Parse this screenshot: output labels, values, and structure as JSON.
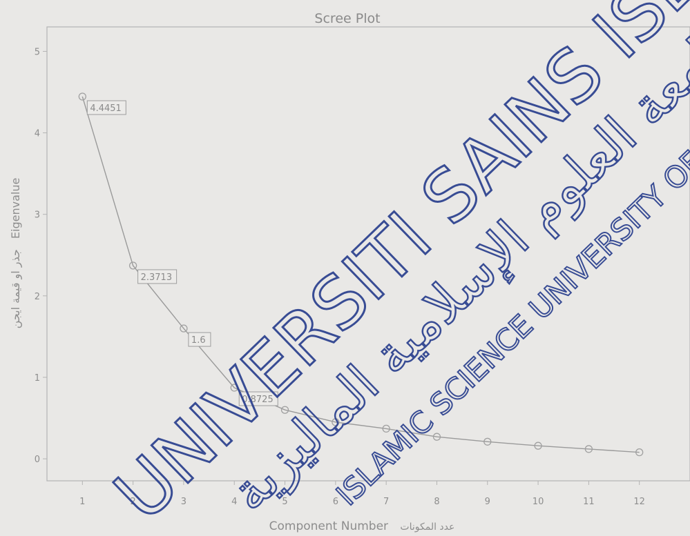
{
  "chart_data": {
    "type": "line",
    "title": "Scree Plot",
    "xlabel": "Component Number",
    "xlabel_ar": "عدد المكونات",
    "ylabel": "Eigenvalue",
    "ylabel_ar": "جذر او قيمة ايجن",
    "x": [
      1,
      2,
      3,
      4,
      5,
      6,
      7,
      8,
      9,
      10,
      11,
      12
    ],
    "values": [
      4.4451,
      2.3713,
      1.6,
      0.8725,
      0.6,
      0.45,
      0.37,
      0.27,
      0.21,
      0.16,
      0.12,
      0.08
    ],
    "data_labels": [
      {
        "index": 0,
        "text": "4.4451"
      },
      {
        "index": 1,
        "text": "2.3713"
      },
      {
        "index": 2,
        "text": "1.6"
      },
      {
        "index": 3,
        "text": "0.8725"
      }
    ],
    "xticks": [
      "1",
      "2",
      "3",
      "4",
      "5",
      "6",
      "7",
      "8",
      "9",
      "10",
      "11",
      "12"
    ],
    "yticks": [
      "0",
      "1",
      "2",
      "3",
      "4",
      "5"
    ],
    "xlim": [
      0.3,
      13
    ],
    "ylim": [
      -0.27,
      5.3
    ],
    "grid": false,
    "colors": {
      "line": "#9a9a9a",
      "marker": "#a0a0a0",
      "text": "#8d8d8d",
      "frame": "#b3b3b3"
    }
  },
  "watermark": {
    "line1": "UNIVERSITI SAINS ISLAM",
    "line2": "ISLAMIC SCIENCE UNIVERSITY OF MALAYSIA",
    "arabic": "جامعة العلوم الإسلامية الماليزية"
  }
}
